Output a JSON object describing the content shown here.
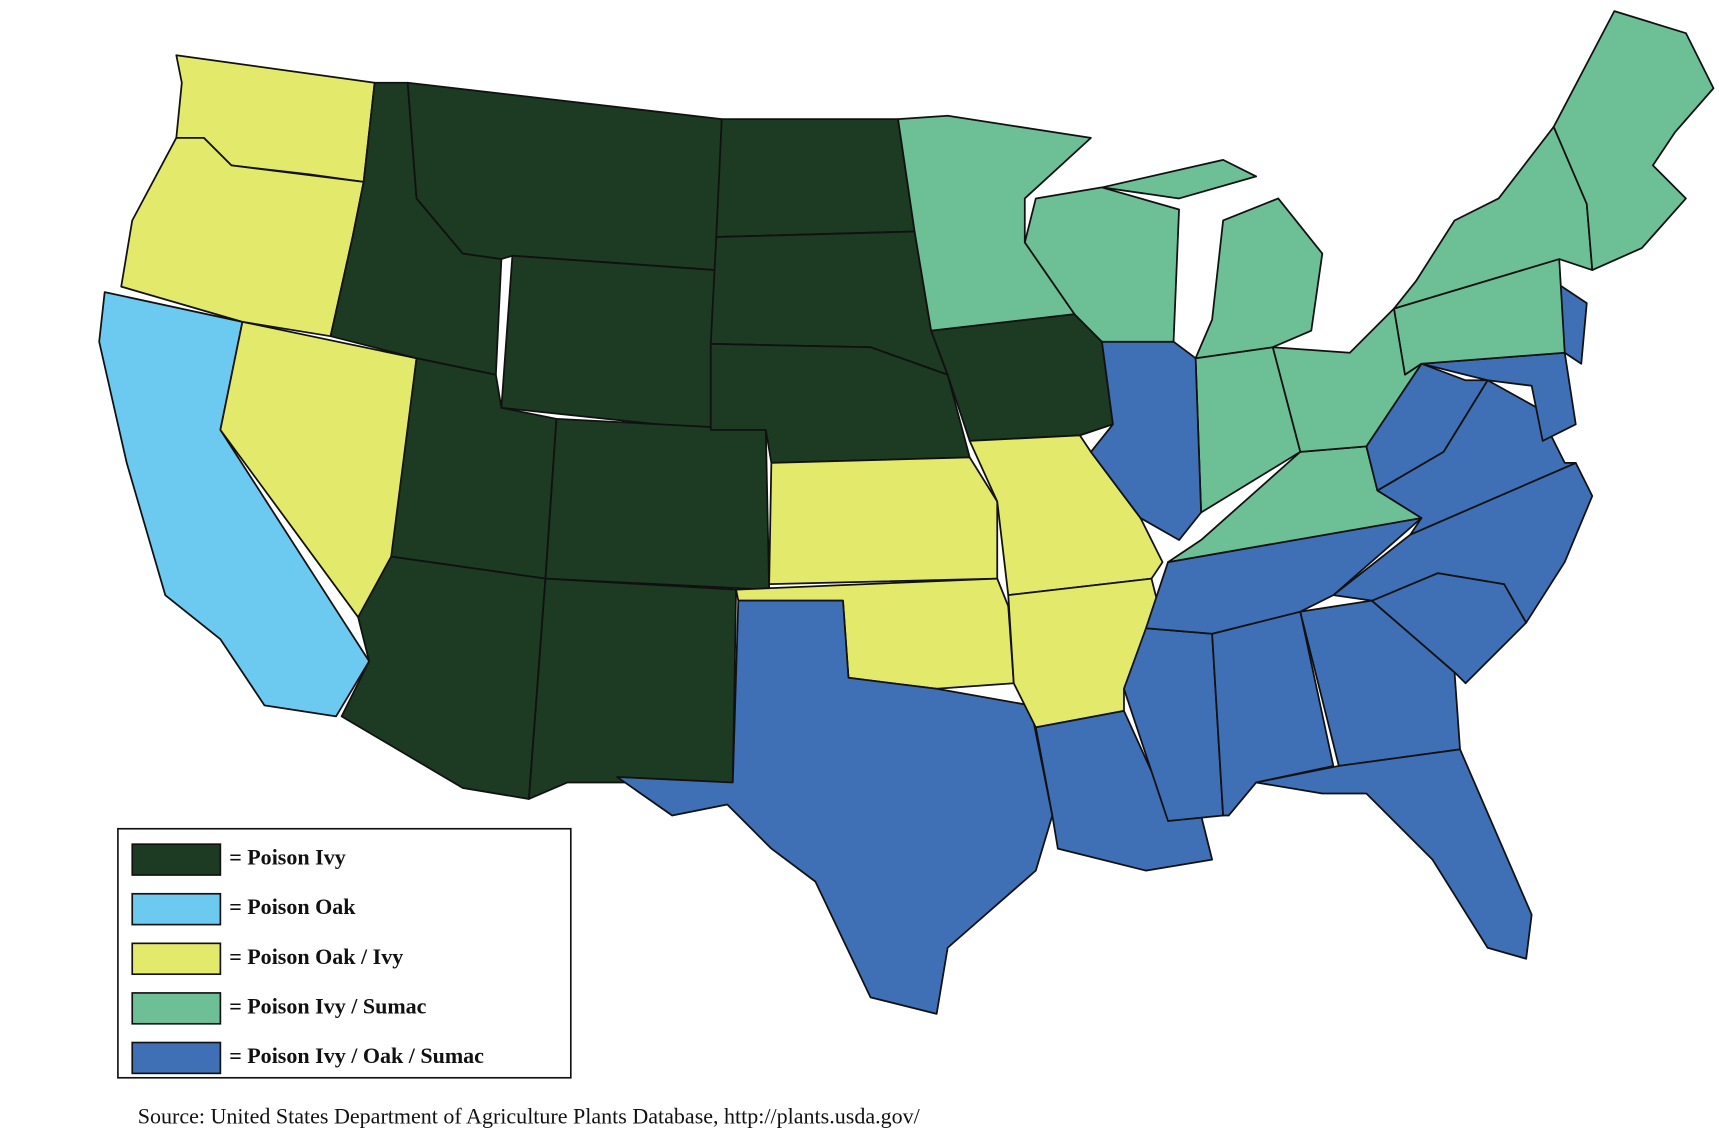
{
  "legend": [
    {
      "label": "= Poison Ivy",
      "color": "#1c3b22"
    },
    {
      "label": "= Poison Oak",
      "color": "#6cc9ef"
    },
    {
      "label": "= Poison Oak / Ivy",
      "color": "#e3e96a"
    },
    {
      "label": "= Poison Ivy / Sumac",
      "color": "#6dbf95"
    },
    {
      "label": "= Poison Ivy / Oak / Sumac",
      "color": "#3f6fb5"
    }
  ],
  "source": "Source:  United States Department of Agriculture Plants Database, http://plants.usda.gov/"
}
